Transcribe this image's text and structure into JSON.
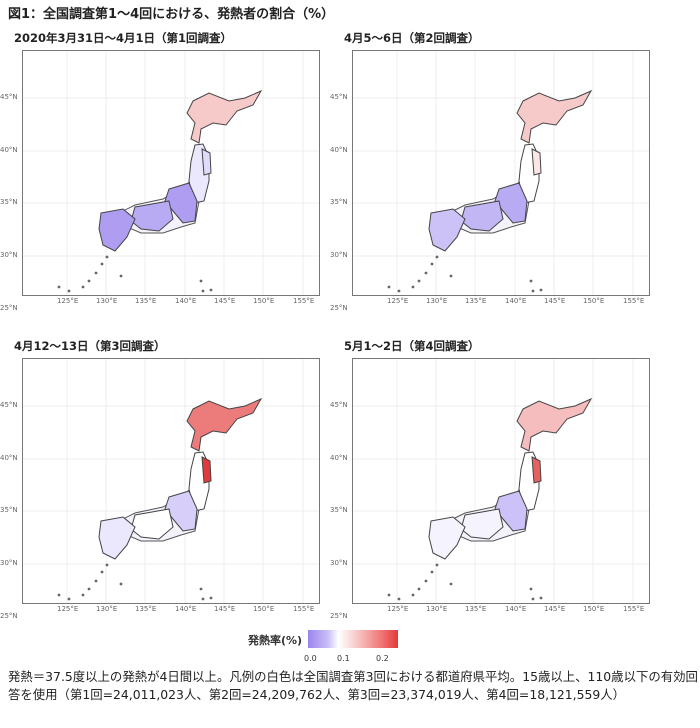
{
  "figure_title": "図1：全国調査第1～4回における、発熱者の割合（%）",
  "axis_ticks": {
    "lat": [
      "45°N",
      "40°N",
      "35°N",
      "30°N",
      "25°N"
    ],
    "lon": [
      "125°E",
      "130°E",
      "135°E",
      "140°E",
      "145°E",
      "150°E",
      "155°E"
    ]
  },
  "panels": [
    {
      "title": "2020年3月31日～4月1日（第1回調査）",
      "hokkaido_rate": 0.14,
      "tohoku_rate": 0.08,
      "iwate_rate": 0.07,
      "kanto_rate": 0.02,
      "kansai_rate": 0.03,
      "kyushu_rate": 0.02
    },
    {
      "title": "4月5～6日（第2回調査）",
      "hokkaido_rate": 0.14,
      "tohoku_rate": 0.1,
      "iwate_rate": 0.12,
      "kanto_rate": 0.03,
      "kansai_rate": 0.04,
      "kyushu_rate": 0.05
    },
    {
      "title": "4月12～13日（第3回調査）",
      "hokkaido_rate": 0.2,
      "tohoku_rate": 0.1,
      "iwate_rate": 0.25,
      "kanto_rate": 0.06,
      "kansai_rate": 0.1,
      "kyushu_rate": 0.08
    },
    {
      "title": "5月1～2日（第4回調査）",
      "hokkaido_rate": 0.15,
      "tohoku_rate": 0.1,
      "iwate_rate": 0.22,
      "kanto_rate": 0.05,
      "kansai_rate": 0.09,
      "kyushu_rate": 0.09
    }
  ],
  "legend": {
    "title": "発熱率(%)",
    "labels": [
      "0.0",
      "0.1",
      "0.2"
    ],
    "colors": {
      "low": "#9b85ef",
      "mid": "#ffffff",
      "high": "#e23a3a"
    }
  },
  "note": "発熱＝37.5度以上の発熱が4日間以上。凡例の白色は全国調査第3回における都道府県平均。15歳以上、110歳以下の有効回答を使用（第1回=24,011,023人、第2回=24,209,762人、第3回=23,374,019人、第4回=18,121,559人）"
}
